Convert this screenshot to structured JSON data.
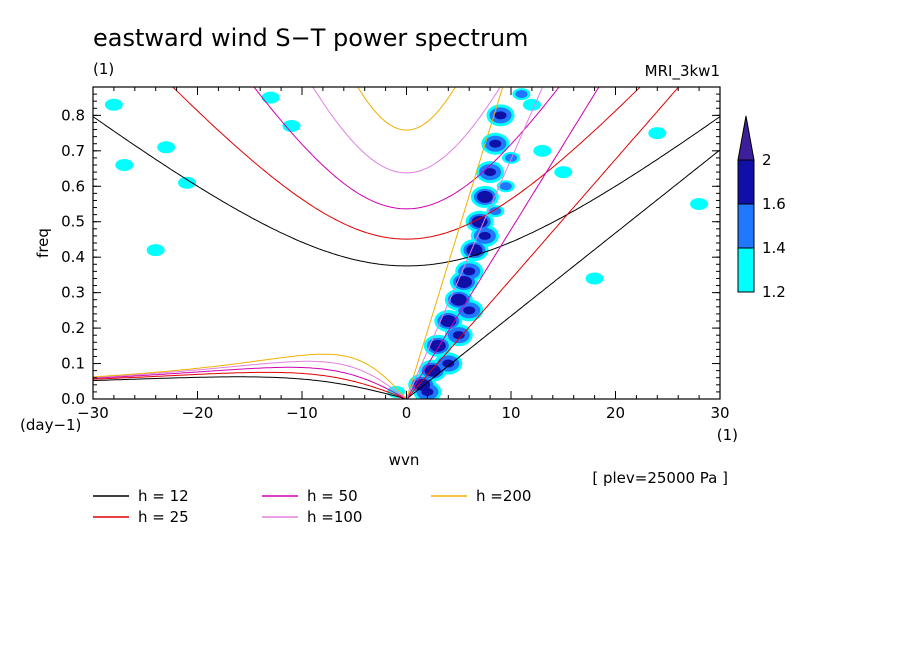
{
  "title": "eastward wind S−T power spectrum",
  "subtitle_left": "(1)",
  "subtitle_right": "MRI_3kw1",
  "plev_note": "[ plev=25000 Pa ]",
  "chart_data": {
    "type": "contour",
    "xlabel": "wvn",
    "ylabel": "freq",
    "x_unit": "(1)",
    "y_unit": "(day−1)",
    "xlim": [
      -30,
      30
    ],
    "ylim": [
      0,
      0.88
    ],
    "x_ticks": [
      -30,
      -20,
      -10,
      0,
      10,
      20,
      30
    ],
    "x_tick_labels": [
      "−30",
      "−20",
      "−10",
      "0",
      "10",
      "20",
      "30"
    ],
    "y_ticks": [
      0,
      0.1,
      0.2,
      0.3,
      0.4,
      0.5,
      0.6,
      0.7,
      0.8
    ],
    "y_tick_labels": [
      "0.0",
      "0.1",
      "0.2",
      "0.3",
      "0.4",
      "0.5",
      "0.6",
      "0.7",
      "0.8"
    ],
    "colorbar": {
      "levels": [
        1.2,
        1.4,
        1.6,
        2
      ],
      "level_labels": [
        "1.2",
        "1.4",
        "1.6",
        "2"
      ],
      "colors": [
        "#00ffff",
        "#1f78ff",
        "#1010a8",
        "#3d1f9c"
      ]
    },
    "dispersion_curves": [
      {
        "label": "h = 12",
        "h": 12,
        "color": "#000000"
      },
      {
        "label": "h = 25",
        "h": 25,
        "color": "#e00000"
      },
      {
        "label": "h = 50",
        "h": 50,
        "color": "#d000b0"
      },
      {
        "label": "h =100",
        "h": 100,
        "color": "#e080e0"
      },
      {
        "label": "h =200",
        "h": 200,
        "color": "#f0b000"
      }
    ],
    "spectral_peaks": [
      {
        "x": 1.5,
        "y": 0.04,
        "level": 2
      },
      {
        "x": 2.5,
        "y": 0.08,
        "level": 2
      },
      {
        "x": 3,
        "y": 0.15,
        "level": 2
      },
      {
        "x": 4,
        "y": 0.22,
        "level": 2
      },
      {
        "x": 5,
        "y": 0.28,
        "level": 2
      },
      {
        "x": 5.5,
        "y": 0.33,
        "level": 2
      },
      {
        "x": 6.5,
        "y": 0.42,
        "level": 2
      },
      {
        "x": 7,
        "y": 0.5,
        "level": 2
      },
      {
        "x": 7.5,
        "y": 0.57,
        "level": 2
      },
      {
        "x": 8,
        "y": 0.64,
        "level": 1.6
      },
      {
        "x": 8.5,
        "y": 0.72,
        "level": 1.6
      },
      {
        "x": 9,
        "y": 0.8,
        "level": 1.6
      },
      {
        "x": 2,
        "y": 0.02,
        "level": 1.6
      },
      {
        "x": 4,
        "y": 0.1,
        "level": 1.6
      },
      {
        "x": 5,
        "y": 0.18,
        "level": 1.6
      },
      {
        "x": 6,
        "y": 0.25,
        "level": 1.6
      },
      {
        "x": 6,
        "y": 0.36,
        "level": 1.6
      },
      {
        "x": 7.5,
        "y": 0.46,
        "level": 1.6
      },
      {
        "x": 8.5,
        "y": 0.53,
        "level": 1.4
      },
      {
        "x": 9.5,
        "y": 0.6,
        "level": 1.4
      },
      {
        "x": 10,
        "y": 0.68,
        "level": 1.4
      },
      {
        "x": 11,
        "y": 0.86,
        "level": 1.4
      },
      {
        "x": -1,
        "y": 0.02,
        "level": 1.2
      },
      {
        "x": -28,
        "y": 0.83,
        "level": 1.2
      },
      {
        "x": -27,
        "y": 0.66,
        "level": 1.2
      },
      {
        "x": -23,
        "y": 0.71,
        "level": 1.2
      },
      {
        "x": -24,
        "y": 0.42,
        "level": 1.2
      },
      {
        "x": -21,
        "y": 0.61,
        "level": 1.2
      },
      {
        "x": -13,
        "y": 0.85,
        "level": 1.2
      },
      {
        "x": -11,
        "y": 0.77,
        "level": 1.2
      },
      {
        "x": 13,
        "y": 0.7,
        "level": 1.2
      },
      {
        "x": 15,
        "y": 0.64,
        "level": 1.2
      },
      {
        "x": 12,
        "y": 0.83,
        "level": 1.2
      },
      {
        "x": 18,
        "y": 0.34,
        "level": 1.2
      },
      {
        "x": 24,
        "y": 0.75,
        "level": 1.2
      },
      {
        "x": 28,
        "y": 0.55,
        "level": 1.2
      }
    ]
  }
}
